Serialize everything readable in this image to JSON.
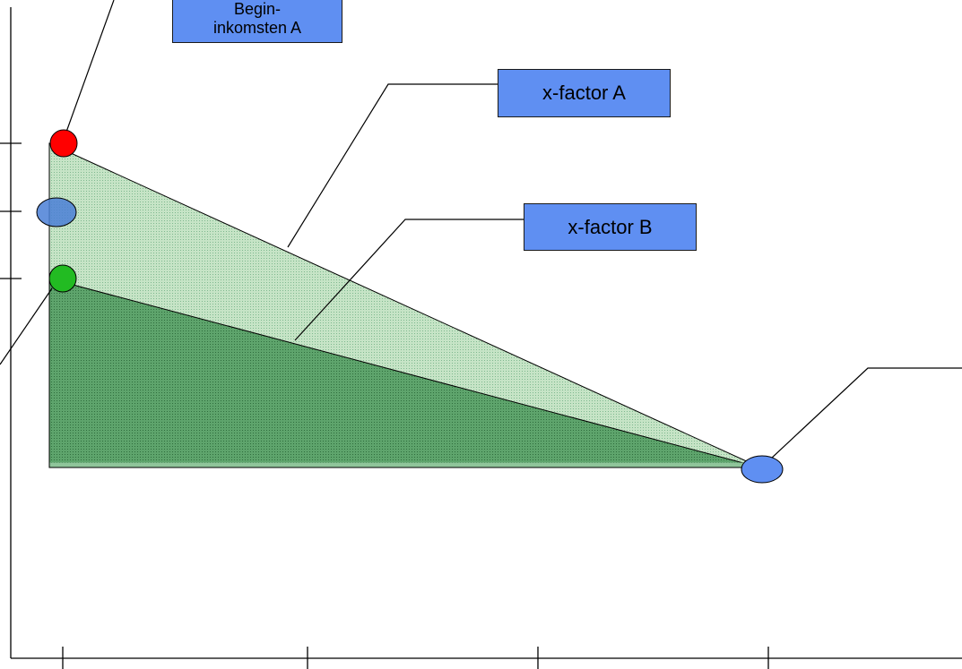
{
  "labels": {
    "begin_a_line1": "Begin-",
    "begin_a_line2": "inkomsten A",
    "x_factor_a": "x-factor A",
    "x_factor_b": "x-factor B"
  },
  "markers": {
    "begin_a": {
      "color": "#ff0000",
      "name": "red circle"
    },
    "mid": {
      "color": "#4a7fd6",
      "name": "blue ellipse"
    },
    "begin_b": {
      "color": "#22bb22",
      "name": "green circle"
    },
    "end": {
      "color": "#5f8ff2",
      "name": "blue ellipse"
    }
  },
  "colors": {
    "box_fill": "#5f8ff2",
    "area_a": "#b8dcb8",
    "area_b": "#4e9a5e",
    "line": "#000000"
  }
}
